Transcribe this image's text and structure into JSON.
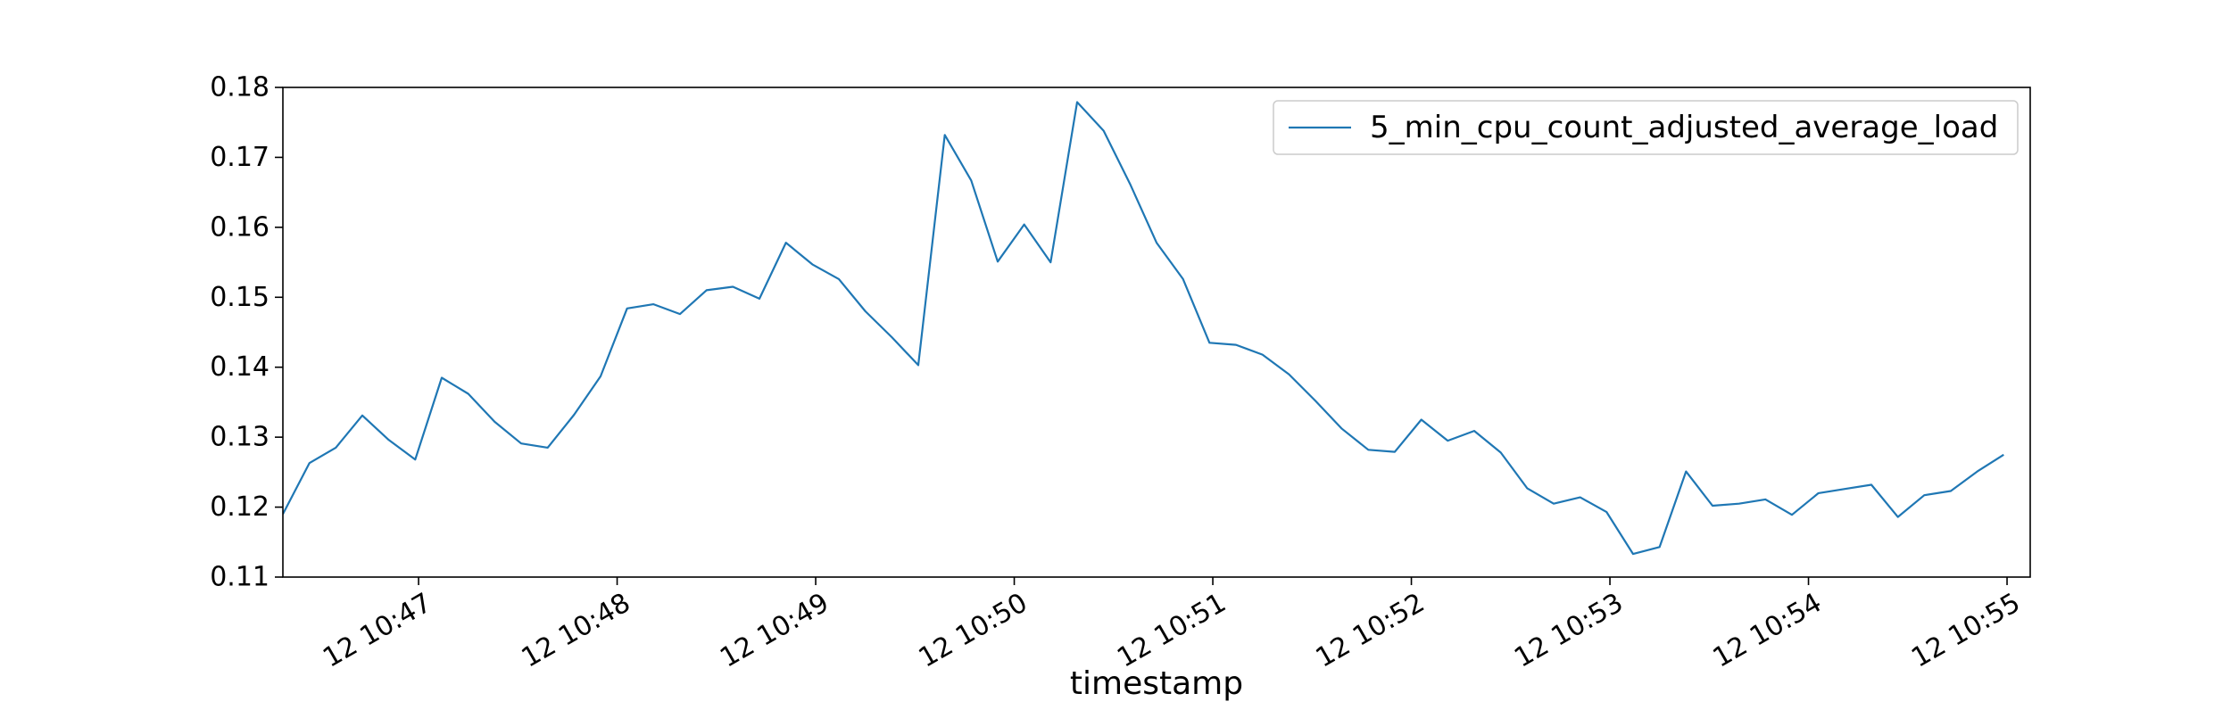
{
  "chart_data": {
    "type": "line",
    "title": "",
    "xlabel": "timestamp",
    "ylabel": "",
    "ylim": [
      0.11,
      0.18
    ],
    "yticks": [
      0.11,
      0.12,
      0.13,
      0.14,
      0.15,
      0.16,
      0.17,
      0.18
    ],
    "ytick_labels": [
      "0.11",
      "0.12",
      "0.13",
      "0.14",
      "0.15",
      "0.16",
      "0.17",
      "0.18"
    ],
    "xlim": [
      "10:46:19",
      "10:55:07"
    ],
    "xticks": [
      "10:47:00",
      "10:48:00",
      "10:49:00",
      "10:50:00",
      "10:51:00",
      "10:52:00",
      "10:53:00",
      "10:54:00",
      "10:55:00"
    ],
    "xtick_labels": [
      "12 10:47",
      "12 10:48",
      "12 10:49",
      "12 10:50",
      "12 10:51",
      "12 10:52",
      "12 10:53",
      "12 10:54",
      "12 10:55"
    ],
    "grid": false,
    "legend_position": "top-right",
    "series": [
      {
        "name": "5_min_cpu_count_adjusted_average_load",
        "color": "#1f77b4",
        "points": [
          [
            "10:46:19",
            0.119
          ],
          [
            "10:46:27",
            0.1263
          ],
          [
            "10:46:35",
            0.1285
          ],
          [
            "10:46:43",
            0.1331
          ],
          [
            "10:46:51",
            0.1296
          ],
          [
            "10:46:59",
            0.1268
          ],
          [
            "10:47:07",
            0.1385
          ],
          [
            "10:47:15",
            0.1362
          ],
          [
            "10:47:23",
            0.1322
          ],
          [
            "10:47:31",
            0.1291
          ],
          [
            "10:47:39",
            0.1285
          ],
          [
            "10:47:47",
            0.1332
          ],
          [
            "10:47:55",
            0.1387
          ],
          [
            "10:48:03",
            0.1484
          ],
          [
            "10:48:11",
            0.149
          ],
          [
            "10:48:19",
            0.1476
          ],
          [
            "10:48:27",
            0.151
          ],
          [
            "10:48:35",
            0.1515
          ],
          [
            "10:48:43",
            0.1498
          ],
          [
            "10:48:51",
            0.1578
          ],
          [
            "10:48:59",
            0.1547
          ],
          [
            "10:49:07",
            0.1526
          ],
          [
            "10:49:15",
            0.148
          ],
          [
            "10:49:23",
            0.1443
          ],
          [
            "10:49:31",
            0.1403
          ],
          [
            "10:49:39",
            0.1732
          ],
          [
            "10:49:47",
            0.1667
          ],
          [
            "10:49:55",
            0.1551
          ],
          [
            "10:50:03",
            0.1604
          ],
          [
            "10:50:11",
            0.155
          ],
          [
            "10:50:19",
            0.1779
          ],
          [
            "10:50:27",
            0.1738
          ],
          [
            "10:50:35",
            0.1662
          ],
          [
            "10:50:43",
            0.1578
          ],
          [
            "10:50:51",
            0.1526
          ],
          [
            "10:50:59",
            0.1435
          ],
          [
            "10:51:07",
            0.1432
          ],
          [
            "10:51:15",
            0.1418
          ],
          [
            "10:51:23",
            0.139
          ],
          [
            "10:51:31",
            0.1352
          ],
          [
            "10:51:39",
            0.1312
          ],
          [
            "10:51:47",
            0.1282
          ],
          [
            "10:51:55",
            0.1279
          ],
          [
            "10:52:03",
            0.1325
          ],
          [
            "10:52:11",
            0.1295
          ],
          [
            "10:52:19",
            0.1309
          ],
          [
            "10:52:27",
            0.1278
          ],
          [
            "10:52:35",
            0.1227
          ],
          [
            "10:52:43",
            0.1205
          ],
          [
            "10:52:51",
            0.1214
          ],
          [
            "10:52:59",
            0.1193
          ],
          [
            "10:53:07",
            0.1133
          ],
          [
            "10:53:15",
            0.1143
          ],
          [
            "10:53:23",
            0.1251
          ],
          [
            "10:53:31",
            0.1202
          ],
          [
            "10:53:39",
            0.1205
          ],
          [
            "10:53:47",
            0.1211
          ],
          [
            "10:53:55",
            0.1189
          ],
          [
            "10:54:03",
            0.122
          ],
          [
            "10:54:11",
            0.1226
          ],
          [
            "10:54:19",
            0.1232
          ],
          [
            "10:54:27",
            0.1186
          ],
          [
            "10:54:35",
            0.1217
          ],
          [
            "10:54:43",
            0.1223
          ],
          [
            "10:54:51",
            0.1251
          ],
          [
            "10:54:59",
            0.1275
          ]
        ]
      }
    ]
  }
}
